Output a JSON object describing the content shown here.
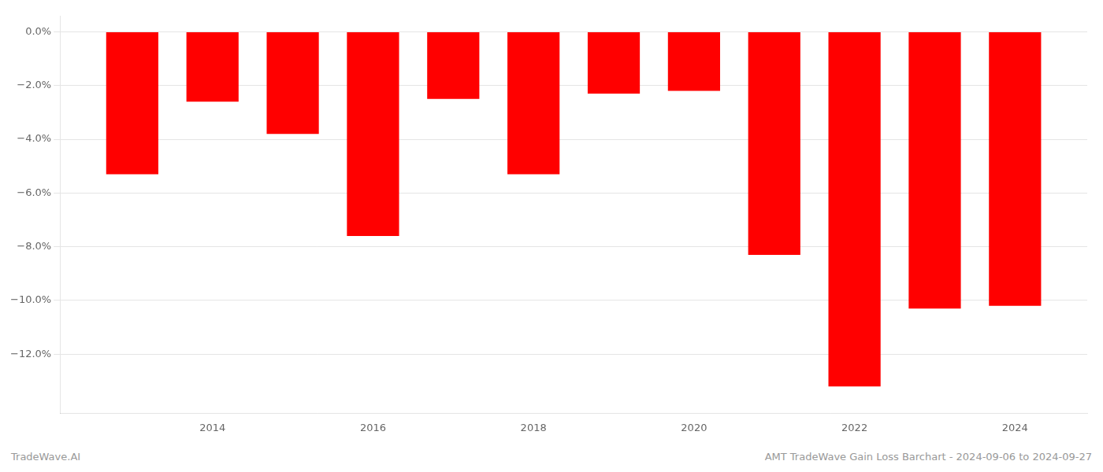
{
  "chart_data": {
    "type": "bar",
    "x": [
      2013,
      2014,
      2015,
      2016,
      2017,
      2018,
      2019,
      2020,
      2021,
      2022,
      2023,
      2024
    ],
    "values": [
      -5.3,
      -2.6,
      -3.8,
      -7.6,
      -2.5,
      -5.3,
      -2.3,
      -2.2,
      -8.3,
      -13.2,
      -10.3,
      -10.2
    ],
    "color": "#ff0000",
    "xlim": [
      2012.1,
      2024.9
    ],
    "xticks": [
      2014,
      2016,
      2018,
      2020,
      2022,
      2024
    ],
    "ylim": [
      -14.2,
      0.6
    ],
    "yticks": [
      {
        "value": 0.0,
        "label": "0.0%"
      },
      {
        "value": -2.0,
        "label": "−2.0%"
      },
      {
        "value": -4.0,
        "label": "−4.0%"
      },
      {
        "value": -6.0,
        "label": "−6.0%"
      },
      {
        "value": -8.0,
        "label": "−8.0%"
      },
      {
        "value": -10.0,
        "label": "−10.0%"
      },
      {
        "value": -12.0,
        "label": "−12.0%"
      }
    ],
    "grid": true,
    "annotations": [
      "TradeWave.AI",
      "AMT TradeWave Gain Loss Barchart - 2024-09-06 to 2024-09-27"
    ]
  }
}
